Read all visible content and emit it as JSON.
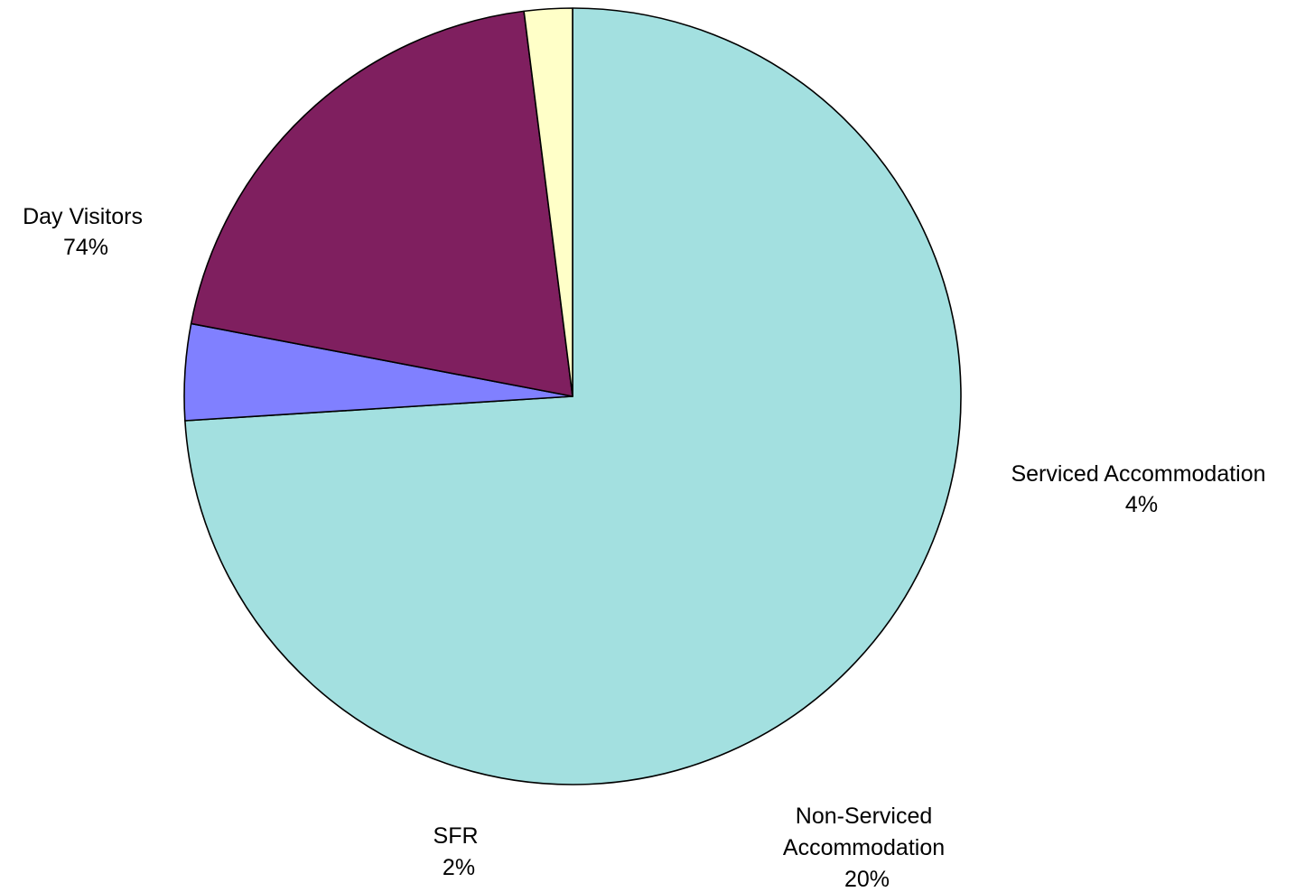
{
  "chart_data": {
    "type": "pie",
    "title": "",
    "start_angle_deg": 90,
    "direction": "clockwise",
    "slices": [
      {
        "name": "Day Visitors",
        "value": 74,
        "value_label": "74%",
        "color": "#A3E0E0"
      },
      {
        "name": "Serviced Accommodation",
        "value": 4,
        "value_label": "4%",
        "color": "#8080FF"
      },
      {
        "name": "Non-Serviced Accommodation",
        "value": 20,
        "value_label": "20%",
        "color": "#7F1F5F"
      },
      {
        "name": "SFR",
        "value": 2,
        "value_label": "2%",
        "color": "#FFFFC8"
      }
    ]
  }
}
